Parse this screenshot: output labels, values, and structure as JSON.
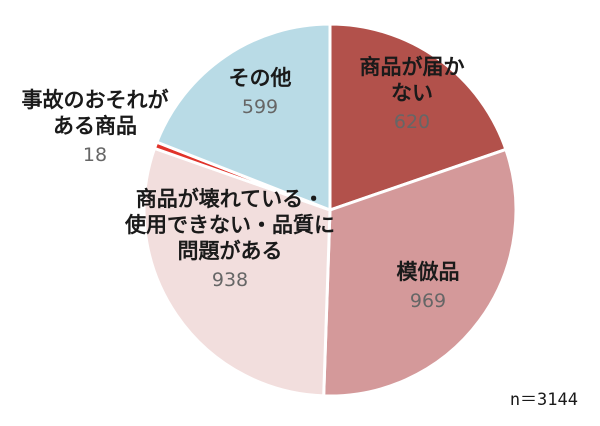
{
  "chart_data": {
    "type": "pie",
    "total_label": "n＝3144",
    "slices": [
      {
        "name_lines": [
          "商品が届か",
          "ない"
        ],
        "value": 620,
        "value_label": "620",
        "color": "#b2514b"
      },
      {
        "name_lines": [
          "模倣品"
        ],
        "value": 969,
        "value_label": "969",
        "color": "#d4999a"
      },
      {
        "name_lines": [
          "商品が壊れている・",
          "使用できない・品質に",
          "問題がある"
        ],
        "value": 938,
        "value_label": "938",
        "color": "#f2dedd"
      },
      {
        "name_lines": [
          "事故のおそれが",
          "ある商品"
        ],
        "value": 18,
        "value_label": "18",
        "color": "#e0332a"
      },
      {
        "name_lines": [
          "その他"
        ],
        "value": 599,
        "value_label": "599",
        "color": "#b9dbe6"
      }
    ]
  }
}
